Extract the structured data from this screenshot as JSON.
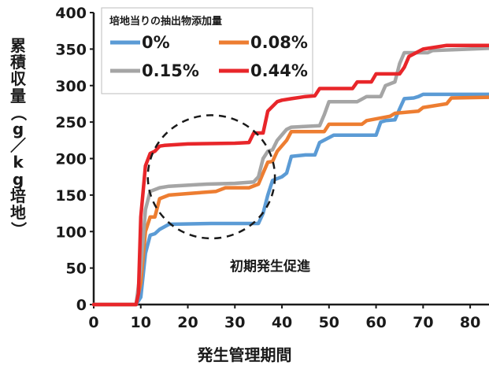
{
  "chart_data": {
    "type": "line",
    "title": "",
    "xlabel": "発生管理期間",
    "ylabel": "累積収量（g／kg培地）",
    "xlim": [
      0,
      84
    ],
    "ylim": [
      0,
      400
    ],
    "xticks": [
      0,
      10,
      20,
      30,
      40,
      50,
      60,
      70,
      80
    ],
    "yticks": [
      0,
      50,
      100,
      150,
      200,
      250,
      300,
      350,
      400
    ],
    "grid": false,
    "legend": {
      "title": "培地当りの抽出物添加量",
      "placement": "top-left",
      "columns": 2
    },
    "annotation": {
      "text": "初期発生促進",
      "shape": "dashed-circle",
      "center": [
        25,
        175
      ],
      "radius_x": 13.5
    },
    "series": [
      {
        "name": "0%",
        "color": "#5b9bd5",
        "points": [
          [
            0,
            0
          ],
          [
            9,
            0
          ],
          [
            10,
            10
          ],
          [
            11,
            70
          ],
          [
            12,
            95
          ],
          [
            13,
            97
          ],
          [
            14,
            103
          ],
          [
            16,
            110
          ],
          [
            25,
            111
          ],
          [
            30,
            111
          ],
          [
            35,
            111
          ],
          [
            36,
            125
          ],
          [
            37,
            150
          ],
          [
            38,
            170
          ],
          [
            40,
            175
          ],
          [
            41,
            180
          ],
          [
            42,
            203
          ],
          [
            45,
            205
          ],
          [
            47,
            205
          ],
          [
            48,
            222
          ],
          [
            51,
            232
          ],
          [
            60,
            232
          ],
          [
            61,
            250
          ],
          [
            62,
            252
          ],
          [
            64,
            253
          ],
          [
            65,
            268
          ],
          [
            66,
            282
          ],
          [
            68,
            283
          ],
          [
            69,
            285
          ],
          [
            70,
            288
          ],
          [
            84,
            288
          ]
        ]
      },
      {
        "name": "0.08%",
        "color": "#ed7d31",
        "points": [
          [
            0,
            0
          ],
          [
            9,
            0
          ],
          [
            10,
            30
          ],
          [
            11,
            100
          ],
          [
            12,
            120
          ],
          [
            13,
            120
          ],
          [
            14,
            145
          ],
          [
            16,
            150
          ],
          [
            20,
            152
          ],
          [
            26,
            155
          ],
          [
            28,
            160
          ],
          [
            33,
            160
          ],
          [
            35,
            165
          ],
          [
            36,
            180
          ],
          [
            37,
            195
          ],
          [
            38,
            196
          ],
          [
            39,
            210
          ],
          [
            41,
            225
          ],
          [
            42,
            237
          ],
          [
            49,
            237
          ],
          [
            50,
            247
          ],
          [
            57,
            247
          ],
          [
            58,
            252
          ],
          [
            63,
            258
          ],
          [
            64,
            262
          ],
          [
            69,
            265
          ],
          [
            70,
            270
          ],
          [
            75,
            275
          ],
          [
            76,
            283
          ],
          [
            84,
            284
          ]
        ]
      },
      {
        "name": "0.15%",
        "color": "#a5a5a5",
        "points": [
          [
            0,
            0
          ],
          [
            9,
            0
          ],
          [
            10,
            50
          ],
          [
            11,
            130
          ],
          [
            12,
            155
          ],
          [
            14,
            160
          ],
          [
            16,
            162
          ],
          [
            24,
            165
          ],
          [
            30,
            166
          ],
          [
            34,
            168
          ],
          [
            35,
            175
          ],
          [
            36,
            200
          ],
          [
            37,
            210
          ],
          [
            38,
            212
          ],
          [
            39,
            225
          ],
          [
            41,
            240
          ],
          [
            42,
            243
          ],
          [
            48,
            245
          ],
          [
            49,
            260
          ],
          [
            50,
            278
          ],
          [
            56,
            278
          ],
          [
            58,
            285
          ],
          [
            61,
            285
          ],
          [
            62,
            300
          ],
          [
            64,
            305
          ],
          [
            65,
            330
          ],
          [
            66,
            345
          ],
          [
            71,
            345
          ],
          [
            72,
            348
          ],
          [
            84,
            351
          ]
        ]
      },
      {
        "name": "0.44%",
        "color": "#e8262a",
        "points": [
          [
            0,
            0
          ],
          [
            9,
            0
          ],
          [
            9.5,
            15
          ],
          [
            10,
            120
          ],
          [
            11,
            190
          ],
          [
            12,
            207
          ],
          [
            13,
            210
          ],
          [
            14,
            217
          ],
          [
            15,
            218
          ],
          [
            20,
            220
          ],
          [
            30,
            221
          ],
          [
            33,
            222
          ],
          [
            34,
            235
          ],
          [
            36,
            235
          ],
          [
            37,
            265
          ],
          [
            39,
            278
          ],
          [
            40,
            280
          ],
          [
            42,
            282
          ],
          [
            45,
            285
          ],
          [
            47,
            286
          ],
          [
            48,
            296
          ],
          [
            55,
            296
          ],
          [
            56,
            305
          ],
          [
            59,
            305
          ],
          [
            60,
            316
          ],
          [
            65,
            316
          ],
          [
            66,
            325
          ],
          [
            67,
            340
          ],
          [
            70,
            350
          ],
          [
            75,
            355
          ],
          [
            84,
            355
          ]
        ]
      }
    ]
  }
}
